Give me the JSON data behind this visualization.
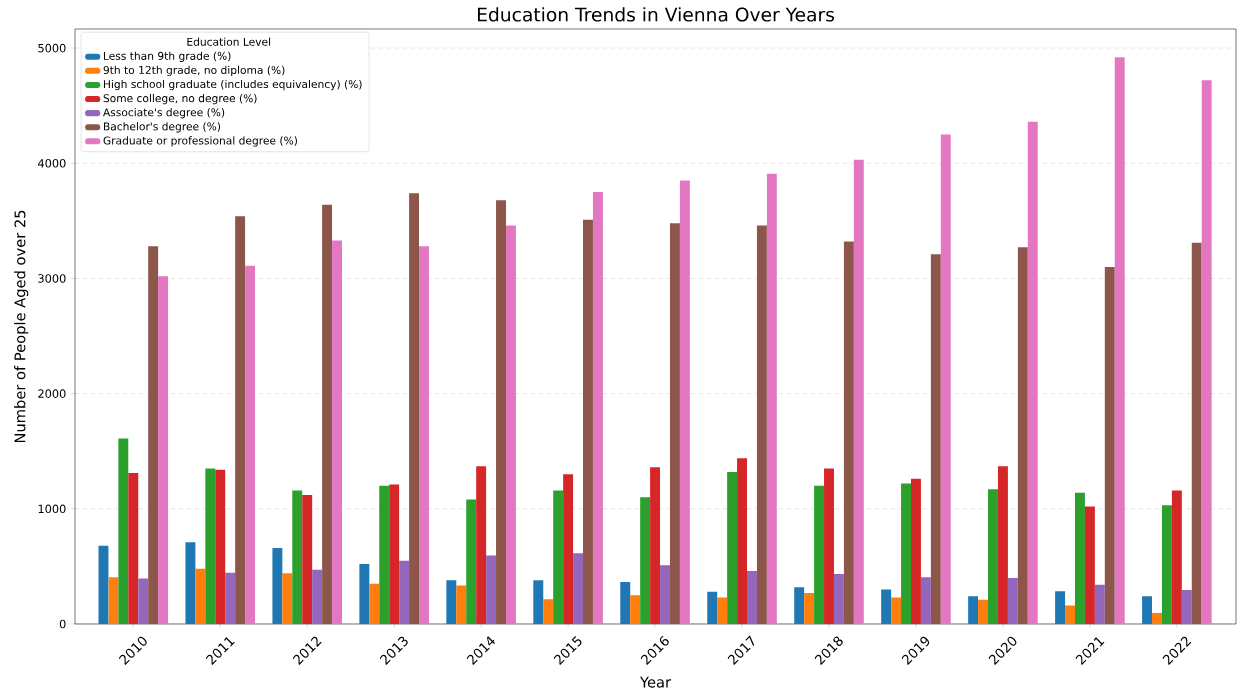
{
  "chart_data": {
    "type": "bar",
    "title": "Education Trends in Vienna Over Years",
    "xlabel": "Year",
    "ylabel": "Number of People Aged over 25",
    "legend_title": "Education Level",
    "categories": [
      "2010",
      "2011",
      "2012",
      "2013",
      "2014",
      "2015",
      "2016",
      "2017",
      "2018",
      "2019",
      "2020",
      "2021",
      "2022"
    ],
    "series": [
      {
        "name": "Less than 9th grade (%)",
        "color": "#1f77b4",
        "values": [
          680,
          710,
          660,
          520,
          380,
          380,
          365,
          280,
          320,
          300,
          240,
          285,
          240
        ]
      },
      {
        "name": "9th to 12th grade, no diploma (%)",
        "color": "#ff7f0e",
        "values": [
          405,
          480,
          440,
          350,
          335,
          215,
          250,
          230,
          270,
          230,
          210,
          160,
          95
        ]
      },
      {
        "name": "High school graduate (includes equivalency) (%)",
        "color": "#2ca02c",
        "values": [
          1610,
          1350,
          1160,
          1200,
          1080,
          1160,
          1100,
          1320,
          1200,
          1220,
          1170,
          1140,
          1030
        ]
      },
      {
        "name": "Some college, no degree (%)",
        "color": "#d62728",
        "values": [
          1310,
          1340,
          1120,
          1210,
          1370,
          1300,
          1360,
          1440,
          1350,
          1260,
          1370,
          1020,
          1160
        ]
      },
      {
        "name": "Associate's degree (%)",
        "color": "#9467bd",
        "values": [
          395,
          445,
          470,
          550,
          595,
          615,
          510,
          460,
          435,
          405,
          400,
          340,
          295
        ]
      },
      {
        "name": "Bachelor's degree (%)",
        "color": "#8c564b",
        "values": [
          3280,
          3540,
          3640,
          3740,
          3680,
          3510,
          3480,
          3460,
          3320,
          3210,
          3270,
          3100,
          3310
        ]
      },
      {
        "name": "Graduate or professional degree (%)",
        "color": "#e377c2",
        "values": [
          3020,
          3110,
          3330,
          3280,
          3460,
          3750,
          3850,
          3910,
          4030,
          4250,
          4360,
          4920,
          4720
        ]
      }
    ],
    "ylim": [
      0,
      5166
    ],
    "yticks": [
      0,
      1000,
      2000,
      3000,
      4000,
      5000
    ],
    "grid": "y",
    "legend": "top left"
  }
}
